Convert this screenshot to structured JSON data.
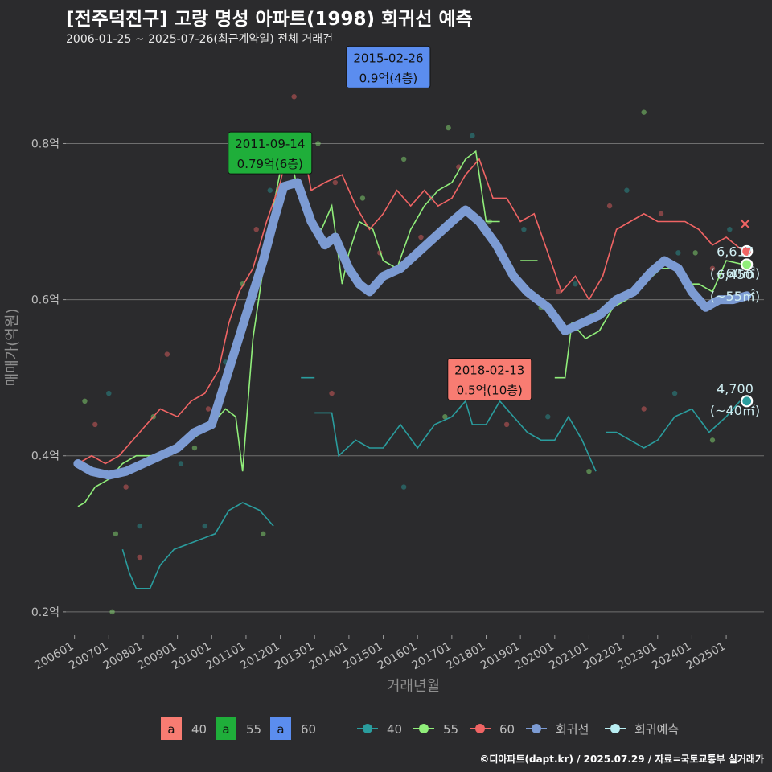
{
  "header": {
    "title": "[전주덕진구] 고랑 명성 아파트(1998) 회귀선 예측",
    "subtitle": "2006-01-25 ~ 2025-07-26(최근계약일) 전체 거래건"
  },
  "footer": "©디아파트(dapt.kr) / 2025.07.29 / 자료=국토교통부 실거래가",
  "colors": {
    "s40": "#2a9d9e",
    "s55": "#90ee7a",
    "s60": "#f06464",
    "reg": "#7c9bd3",
    "pred": "#b8eef2",
    "ann40": "#f87c72",
    "ann55": "#1fae3a",
    "ann60": "#5b8def"
  },
  "chart_data": {
    "type": "line",
    "title": "[전주덕진구] 고랑 명성 아파트(1998) 회귀선 예측",
    "xlabel": "거래년월",
    "ylabel": "매매가(억원)",
    "ylim": [
      0.17,
      0.92
    ],
    "xlim": [
      2005.75,
      2026.1
    ],
    "yticks": [
      {
        "v": 0.2,
        "label": "0.2억"
      },
      {
        "v": 0.4,
        "label": "0.4억"
      },
      {
        "v": 0.6,
        "label": "0.6억"
      },
      {
        "v": 0.8,
        "label": "0.8억"
      }
    ],
    "xticks": [
      "200601",
      "200701",
      "200801",
      "200901",
      "201001",
      "201101",
      "201201",
      "201301",
      "201401",
      "201501",
      "201601",
      "201701",
      "201801",
      "201901",
      "202001",
      "202101",
      "202201",
      "202301",
      "202401",
      "202501"
    ],
    "series": [
      {
        "name": "40",
        "color_key": "s40",
        "points": [
          [
            2007.4,
            0.28
          ],
          [
            2007.6,
            0.25
          ],
          [
            2007.8,
            0.23
          ],
          [
            2008.2,
            0.23
          ],
          [
            2008.5,
            0.26
          ],
          [
            2008.9,
            0.28
          ],
          [
            2009.5,
            0.29
          ],
          [
            2010.1,
            0.3
          ],
          [
            2010.5,
            0.33
          ],
          [
            2010.9,
            0.34
          ],
          [
            2011.4,
            0.33
          ],
          [
            2011.8,
            0.31
          ]
        ],
        "segments": [
          [
            [
              2013.0,
              0.455
            ],
            [
              2013.5,
              0.455
            ],
            [
              2013.7,
              0.4
            ],
            [
              2014.2,
              0.42
            ],
            [
              2014.6,
              0.41
            ],
            [
              2015.0,
              0.41
            ],
            [
              2015.5,
              0.44
            ],
            [
              2016.0,
              0.41
            ],
            [
              2016.5,
              0.44
            ],
            [
              2017.0,
              0.45
            ],
            [
              2017.4,
              0.47
            ],
            [
              2017.6,
              0.44
            ],
            [
              2018.0,
              0.44
            ],
            [
              2018.4,
              0.47
            ],
            [
              2018.8,
              0.45
            ],
            [
              2019.2,
              0.43
            ],
            [
              2019.6,
              0.42
            ],
            [
              2020.0,
              0.42
            ],
            [
              2020.4,
              0.45
            ],
            [
              2020.8,
              0.42
            ],
            [
              2021.2,
              0.38
            ]
          ],
          [
            [
              2021.5,
              0.43
            ],
            [
              2021.8,
              0.43
            ],
            [
              2022.2,
              0.42
            ],
            [
              2022.6,
              0.41
            ],
            [
              2023.0,
              0.42
            ],
            [
              2023.5,
              0.45
            ],
            [
              2024.0,
              0.46
            ],
            [
              2024.5,
              0.43
            ],
            [
              2025.0,
              0.45
            ],
            [
              2025.4,
              0.47
            ]
          ],
          [
            [
              2012.6,
              0.5
            ],
            [
              2013.0,
              0.5
            ]
          ]
        ]
      },
      {
        "name": "55",
        "color_key": "s55",
        "points": [
          [
            2006.1,
            0.335
          ],
          [
            2006.3,
            0.34
          ],
          [
            2006.6,
            0.36
          ],
          [
            2007.0,
            0.37
          ],
          [
            2007.4,
            0.39
          ],
          [
            2007.8,
            0.4
          ],
          [
            2008.4,
            0.4
          ],
          [
            2008.9,
            0.41
          ],
          [
            2009.4,
            0.42
          ],
          [
            2010.0,
            0.44
          ],
          [
            2010.4,
            0.46
          ],
          [
            2010.7,
            0.45
          ],
          [
            2010.9,
            0.38
          ],
          [
            2011.2,
            0.55
          ],
          [
            2011.5,
            0.64
          ],
          [
            2011.8,
            0.72
          ],
          [
            2012.2,
            0.81
          ],
          [
            2012.5,
            0.74
          ],
          [
            2012.8,
            0.7
          ],
          [
            2013.2,
            0.69
          ],
          [
            2013.5,
            0.72
          ],
          [
            2013.8,
            0.62
          ],
          [
            2014.0,
            0.66
          ],
          [
            2014.3,
            0.7
          ],
          [
            2014.7,
            0.69
          ],
          [
            2015.0,
            0.65
          ],
          [
            2015.4,
            0.64
          ],
          [
            2015.8,
            0.69
          ],
          [
            2016.2,
            0.72
          ],
          [
            2016.6,
            0.74
          ],
          [
            2017.0,
            0.75
          ],
          [
            2017.4,
            0.78
          ],
          [
            2017.7,
            0.79
          ],
          [
            2018.0,
            0.7
          ],
          [
            2018.4,
            0.7
          ]
        ],
        "segments": [
          [
            [
              2019.0,
              0.65
            ],
            [
              2019.5,
              0.65
            ]
          ],
          [
            [
              2020.0,
              0.5
            ],
            [
              2020.3,
              0.5
            ],
            [
              2020.5,
              0.57
            ],
            [
              2020.9,
              0.55
            ],
            [
              2021.3,
              0.56
            ],
            [
              2021.7,
              0.59
            ],
            [
              2022.1,
              0.6
            ],
            [
              2022.6,
              0.62
            ],
            [
              2023.1,
              0.64
            ],
            [
              2023.5,
              0.64
            ],
            [
              2023.8,
              0.62
            ],
            [
              2024.2,
              0.62
            ],
            [
              2024.6,
              0.61
            ],
            [
              2025.0,
              0.65
            ],
            [
              2025.5,
              0.645
            ]
          ]
        ]
      },
      {
        "name": "60",
        "color_key": "s60",
        "points": [
          [
            2006.1,
            0.39
          ],
          [
            2006.5,
            0.4
          ],
          [
            2006.9,
            0.39
          ],
          [
            2007.3,
            0.4
          ],
          [
            2007.7,
            0.42
          ],
          [
            2008.1,
            0.44
          ],
          [
            2008.5,
            0.46
          ],
          [
            2009.0,
            0.45
          ],
          [
            2009.4,
            0.47
          ],
          [
            2009.8,
            0.48
          ],
          [
            2010.2,
            0.51
          ],
          [
            2010.5,
            0.57
          ],
          [
            2010.8,
            0.61
          ],
          [
            2011.2,
            0.64
          ],
          [
            2011.6,
            0.7
          ],
          [
            2012.0,
            0.75
          ],
          [
            2012.3,
            0.81
          ],
          [
            2012.6,
            0.81
          ],
          [
            2012.9,
            0.74
          ],
          [
            2013.3,
            0.75
          ],
          [
            2013.8,
            0.76
          ],
          [
            2014.2,
            0.72
          ],
          [
            2014.6,
            0.69
          ],
          [
            2015.0,
            0.71
          ],
          [
            2015.4,
            0.74
          ],
          [
            2015.8,
            0.72
          ],
          [
            2016.2,
            0.74
          ],
          [
            2016.6,
            0.72
          ],
          [
            2017.0,
            0.73
          ],
          [
            2017.4,
            0.76
          ],
          [
            2017.8,
            0.78
          ],
          [
            2018.2,
            0.73
          ],
          [
            2018.6,
            0.73
          ],
          [
            2019.0,
            0.7
          ],
          [
            2019.4,
            0.71
          ],
          [
            2019.8,
            0.66
          ],
          [
            2020.2,
            0.61
          ],
          [
            2020.6,
            0.63
          ],
          [
            2021.0,
            0.6
          ],
          [
            2021.4,
            0.63
          ],
          [
            2021.8,
            0.69
          ],
          [
            2022.2,
            0.7
          ],
          [
            2022.6,
            0.71
          ],
          [
            2023.0,
            0.7
          ],
          [
            2023.4,
            0.7
          ],
          [
            2023.8,
            0.7
          ],
          [
            2024.2,
            0.69
          ],
          [
            2024.6,
            0.67
          ],
          [
            2025.0,
            0.68
          ],
          [
            2025.5,
            0.662
          ]
        ]
      },
      {
        "name": "회귀선",
        "color_key": "reg",
        "points": [
          [
            2006.1,
            0.39
          ],
          [
            2006.5,
            0.38
          ],
          [
            2007.0,
            0.375
          ],
          [
            2007.5,
            0.38
          ],
          [
            2008.0,
            0.39
          ],
          [
            2008.5,
            0.4
          ],
          [
            2009.0,
            0.41
          ],
          [
            2009.5,
            0.43
          ],
          [
            2010.0,
            0.44
          ],
          [
            2010.5,
            0.51
          ],
          [
            2011.0,
            0.58
          ],
          [
            2011.5,
            0.65
          ],
          [
            2011.8,
            0.7
          ],
          [
            2012.1,
            0.745
          ],
          [
            2012.5,
            0.75
          ],
          [
            2012.9,
            0.7
          ],
          [
            2013.3,
            0.67
          ],
          [
            2013.6,
            0.68
          ],
          [
            2014.0,
            0.64
          ],
          [
            2014.3,
            0.62
          ],
          [
            2014.6,
            0.61
          ],
          [
            2015.0,
            0.63
          ],
          [
            2015.5,
            0.64
          ],
          [
            2016.0,
            0.66
          ],
          [
            2016.5,
            0.68
          ],
          [
            2017.0,
            0.7
          ],
          [
            2017.4,
            0.715
          ],
          [
            2017.8,
            0.7
          ],
          [
            2018.3,
            0.67
          ],
          [
            2018.8,
            0.63
          ],
          [
            2019.2,
            0.61
          ],
          [
            2019.8,
            0.59
          ],
          [
            2020.3,
            0.56
          ],
          [
            2020.8,
            0.57
          ],
          [
            2021.3,
            0.58
          ],
          [
            2021.8,
            0.6
          ],
          [
            2022.3,
            0.61
          ],
          [
            2022.8,
            0.635
          ],
          [
            2023.2,
            0.65
          ],
          [
            2023.6,
            0.64
          ],
          [
            2024.0,
            0.61
          ],
          [
            2024.4,
            0.59
          ],
          [
            2024.8,
            0.6
          ],
          [
            2025.2,
            0.6
          ],
          [
            2025.6,
            0.605
          ]
        ]
      }
    ],
    "annotations": [
      {
        "label": "2015-02-26",
        "value": "0.9억(4층)",
        "x": 2015.15,
        "y": 0.9,
        "color_key": "ann60"
      },
      {
        "label": "2011-09-14",
        "value": "0.79억(6층)",
        "x": 2011.7,
        "y": 0.79,
        "color_key": "ann55"
      },
      {
        "label": "2018-02-13",
        "value": "0.5억(10층)",
        "x": 2018.1,
        "y": 0.5,
        "color_key": "ann40"
      }
    ],
    "end_labels": [
      {
        "value": "6,617",
        "area": "(~60㎡)",
        "y": 0.662,
        "color_key": "s60"
      },
      {
        "value": "6,450",
        "area": "(~55㎡)",
        "y": 0.645,
        "color_key": "s55"
      },
      {
        "value": "4,700",
        "area": "(~40㎡)",
        "y": 0.47,
        "color_key": "s40"
      }
    ],
    "scatter_samples": [
      [
        2006.3,
        0.47
      ],
      [
        2006.6,
        0.44
      ],
      [
        2007.0,
        0.48
      ],
      [
        2007.2,
        0.3
      ],
      [
        2007.5,
        0.36
      ],
      [
        2007.9,
        0.31
      ],
      [
        2008.3,
        0.45
      ],
      [
        2008.7,
        0.53
      ],
      [
        2009.1,
        0.39
      ],
      [
        2009.5,
        0.41
      ],
      [
        2009.9,
        0.46
      ],
      [
        2010.4,
        0.52
      ],
      [
        2010.9,
        0.62
      ],
      [
        2011.3,
        0.69
      ],
      [
        2011.7,
        0.74
      ],
      [
        2012.1,
        0.79
      ],
      [
        2012.4,
        0.86
      ],
      [
        2012.7,
        0.78
      ],
      [
        2013.1,
        0.8
      ],
      [
        2013.6,
        0.75
      ],
      [
        2013.9,
        0.65
      ],
      [
        2014.4,
        0.73
      ],
      [
        2014.9,
        0.66
      ],
      [
        2015.2,
        0.9
      ],
      [
        2015.6,
        0.78
      ],
      [
        2016.1,
        0.68
      ],
      [
        2016.4,
        0.73
      ],
      [
        2016.9,
        0.82
      ],
      [
        2017.2,
        0.77
      ],
      [
        2017.6,
        0.81
      ],
      [
        2018.1,
        0.7
      ],
      [
        2018.5,
        0.66
      ],
      [
        2019.1,
        0.69
      ],
      [
        2019.6,
        0.59
      ],
      [
        2020.1,
        0.61
      ],
      [
        2020.6,
        0.62
      ],
      [
        2021.1,
        0.58
      ],
      [
        2021.6,
        0.72
      ],
      [
        2022.1,
        0.74
      ],
      [
        2022.6,
        0.84
      ],
      [
        2023.1,
        0.71
      ],
      [
        2023.6,
        0.66
      ],
      [
        2024.1,
        0.66
      ],
      [
        2024.6,
        0.64
      ],
      [
        2025.1,
        0.69
      ],
      [
        2007.1,
        0.2
      ],
      [
        2007.9,
        0.27
      ],
      [
        2009.8,
        0.31
      ],
      [
        2011.5,
        0.3
      ],
      [
        2013.5,
        0.48
      ],
      [
        2015.6,
        0.36
      ],
      [
        2016.8,
        0.45
      ],
      [
        2018.6,
        0.44
      ],
      [
        2019.8,
        0.45
      ],
      [
        2021.0,
        0.38
      ],
      [
        2022.6,
        0.46
      ],
      [
        2023.5,
        0.48
      ],
      [
        2024.6,
        0.42
      ]
    ]
  },
  "legend": {
    "boxes": [
      {
        "glyph": "a",
        "label": "40",
        "color_key": "ann40"
      },
      {
        "glyph": "a",
        "label": "55",
        "color_key": "ann55"
      },
      {
        "glyph": "a",
        "label": "60",
        "color_key": "ann60"
      }
    ],
    "lines": [
      {
        "label": "40",
        "color_key": "s40"
      },
      {
        "label": "55",
        "color_key": "s55"
      },
      {
        "label": "60",
        "color_key": "s60"
      },
      {
        "label": "회귀선",
        "color_key": "reg"
      },
      {
        "label": "회귀예측",
        "color_key": "pred"
      }
    ]
  }
}
